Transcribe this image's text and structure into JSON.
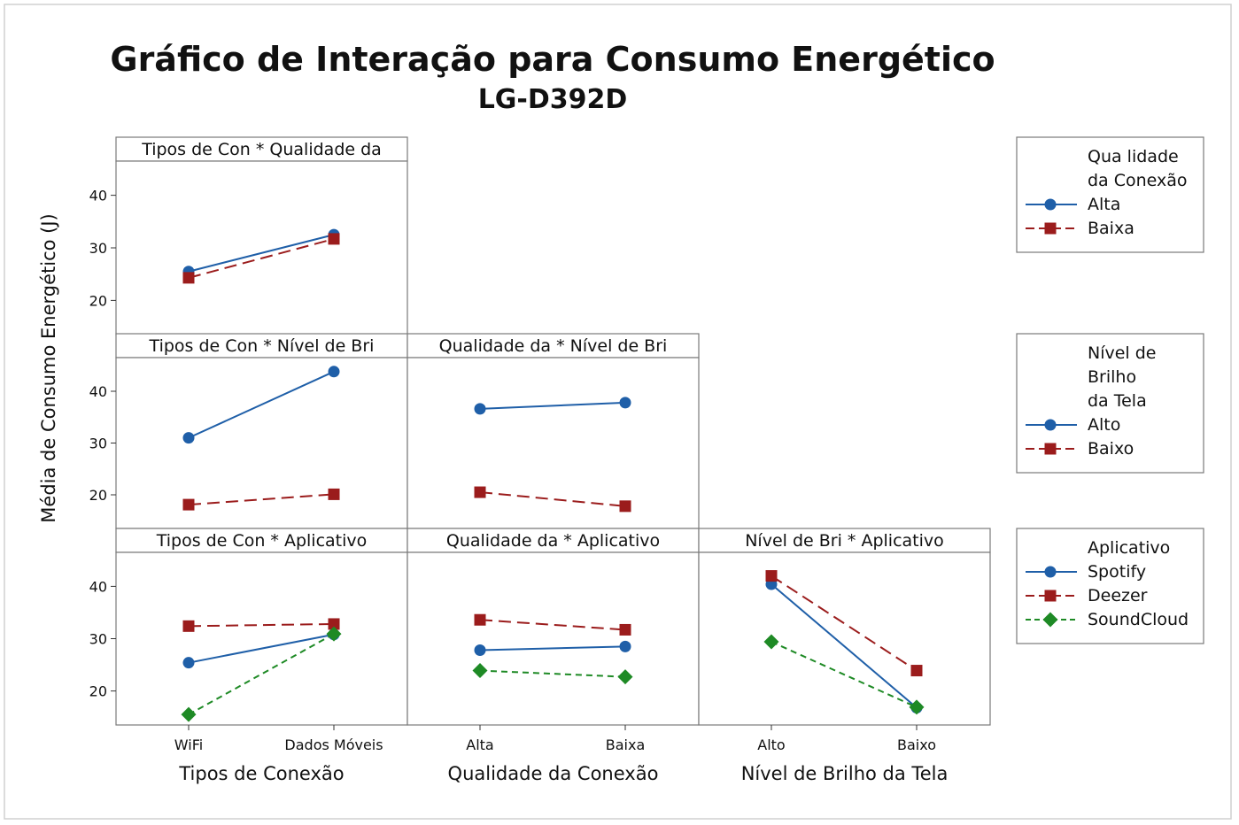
{
  "chart_data": {
    "type": "line",
    "title": "Gráfico de Interação para Consumo Energético",
    "subtitle": "LG-D392D",
    "ylabel": "Média de Consumo Energético (J)",
    "ylim": [
      13.5,
      46.5
    ],
    "yticks": [
      20,
      30,
      40
    ],
    "factors": [
      {
        "name": "Tipos de Conexão",
        "levels": [
          "WiFi",
          "Dados Móveis"
        ]
      },
      {
        "name": "Qualidade da Conexão",
        "levels": [
          "Alta",
          "Baixa"
        ]
      },
      {
        "name": "Nível de Brilho da Tela",
        "levels": [
          "Alto",
          "Baixo"
        ]
      }
    ],
    "panels": [
      {
        "title": "Tipos de Con * Qualidade da",
        "row": 0,
        "col": 0,
        "series": [
          {
            "name": "Alta",
            "values": [
              25.5,
              32.5
            ]
          },
          {
            "name": "Baixa",
            "values": [
              24.3,
              31.7
            ]
          }
        ]
      },
      {
        "title": "Tipos de Con * Nível de Bri",
        "row": 1,
        "col": 0,
        "series": [
          {
            "name": "Alto",
            "values": [
              31.0,
              43.8
            ]
          },
          {
            "name": "Baixo",
            "values": [
              18.1,
              20.1
            ]
          }
        ]
      },
      {
        "title": "Qualidade da * Nível de Bri",
        "row": 1,
        "col": 1,
        "series": [
          {
            "name": "Alto",
            "values": [
              36.6,
              37.8
            ]
          },
          {
            "name": "Baixo",
            "values": [
              20.5,
              17.8
            ]
          }
        ]
      },
      {
        "title": "Tipos de Con * Aplicativo",
        "row": 2,
        "col": 0,
        "series": [
          {
            "name": "Spotify",
            "values": [
              25.4,
              30.8
            ]
          },
          {
            "name": "Deezer",
            "values": [
              32.4,
              32.8
            ]
          },
          {
            "name": "SoundCloud",
            "values": [
              15.5,
              30.9
            ]
          }
        ]
      },
      {
        "title": "Qualidade da * Aplicativo",
        "row": 2,
        "col": 1,
        "series": [
          {
            "name": "Spotify",
            "values": [
              27.8,
              28.5
            ]
          },
          {
            "name": "Deezer",
            "values": [
              33.6,
              31.7
            ]
          },
          {
            "name": "SoundCloud",
            "values": [
              23.9,
              22.7
            ]
          }
        ]
      },
      {
        "title": "Nível de Bri * Aplicativo",
        "row": 2,
        "col": 2,
        "series": [
          {
            "name": "Spotify",
            "values": [
              40.4,
              16.8
            ]
          },
          {
            "name": "Deezer",
            "values": [
              42.0,
              23.9
            ]
          },
          {
            "name": "SoundCloud",
            "values": [
              29.4,
              16.9
            ]
          }
        ]
      }
    ],
    "legends": [
      {
        "title": [
          "Qua lidade",
          "da Conexão"
        ],
        "entries": [
          {
            "label": "Alta",
            "style": "s0"
          },
          {
            "label": "Baixa",
            "style": "s1"
          }
        ]
      },
      {
        "title": [
          "Nível de",
          "Brilho",
          "da Tela"
        ],
        "entries": [
          {
            "label": "Alto",
            "style": "s0"
          },
          {
            "label": "Baixo",
            "style": "s1"
          }
        ]
      },
      {
        "title": [
          "Aplicativo"
        ],
        "entries": [
          {
            "label": "Spotify",
            "style": "s0"
          },
          {
            "label": "Deezer",
            "style": "s1"
          },
          {
            "label": "SoundCloud",
            "style": "s2"
          }
        ]
      }
    ],
    "styles": {
      "s0": {
        "color": "#1f5fa8",
        "dash": "solid",
        "marker": "circle"
      },
      "s1": {
        "color": "#9b1c1c",
        "dash": "long-dash",
        "marker": "square"
      },
      "s2": {
        "color": "#1e8a25",
        "dash": "short-dash",
        "marker": "diamond"
      }
    },
    "grid": false
  }
}
